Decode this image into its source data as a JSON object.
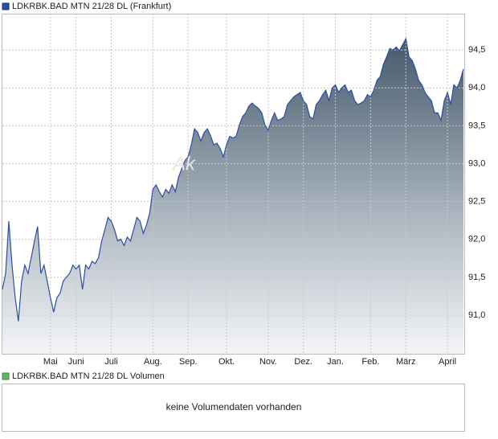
{
  "chart_data": {
    "type": "area",
    "series": [
      {
        "name": "LDKRBK.BAD MTN 21/28 DL (Frankfurt)",
        "color": "#2a4fa0",
        "values": [
          91.34,
          91.55,
          92.24,
          91.66,
          91.23,
          90.92,
          91.45,
          91.66,
          91.55,
          91.76,
          91.98,
          92.17,
          91.55,
          91.66,
          91.45,
          91.23,
          91.04,
          91.23,
          91.29,
          91.45,
          91.5,
          91.55,
          91.66,
          91.61,
          91.66,
          91.34,
          91.66,
          91.61,
          91.71,
          91.68,
          91.76,
          91.98,
          92.13,
          92.29,
          92.24,
          92.13,
          91.98,
          92.0,
          91.92,
          92.03,
          91.98,
          92.13,
          92.29,
          92.24,
          92.08,
          92.19,
          92.35,
          92.66,
          92.72,
          92.63,
          92.56,
          92.66,
          92.61,
          92.72,
          92.63,
          92.82,
          92.93,
          93.04,
          93.09,
          93.25,
          93.46,
          93.41,
          93.3,
          93.41,
          93.46,
          93.37,
          93.25,
          93.27,
          93.2,
          93.09,
          93.25,
          93.36,
          93.34,
          93.36,
          93.51,
          93.62,
          93.67,
          93.76,
          93.8,
          93.76,
          93.73,
          93.67,
          93.51,
          93.44,
          93.57,
          93.67,
          93.57,
          93.59,
          93.62,
          93.78,
          93.83,
          93.88,
          93.91,
          93.94,
          93.83,
          93.78,
          93.62,
          93.59,
          93.78,
          93.83,
          93.91,
          93.97,
          93.83,
          94.0,
          94.04,
          93.94,
          94.0,
          94.04,
          93.94,
          93.97,
          93.83,
          93.78,
          93.8,
          93.83,
          93.91,
          93.88,
          93.97,
          94.1,
          94.15,
          94.31,
          94.41,
          94.52,
          94.5,
          94.54,
          94.49,
          94.57,
          94.65,
          94.41,
          94.36,
          94.25,
          94.1,
          94.04,
          93.94,
          93.88,
          93.83,
          93.67,
          93.67,
          93.57,
          93.83,
          93.94,
          93.78,
          94.04,
          94.0,
          94.1,
          94.25
        ]
      }
    ],
    "xlim": [
      0,
      144
    ],
    "xticks": [
      {
        "value": 15,
        "label": "Mai"
      },
      {
        "value": 23,
        "label": "Juni"
      },
      {
        "value": 34,
        "label": "Juli"
      },
      {
        "value": 47,
        "label": "Aug."
      },
      {
        "value": 58,
        "label": "Sep."
      },
      {
        "value": 70,
        "label": "Okt."
      },
      {
        "value": 83,
        "label": "Nov."
      },
      {
        "value": 94,
        "label": "Dez."
      },
      {
        "value": 104,
        "label": "Jan."
      },
      {
        "value": 115,
        "label": "Feb."
      },
      {
        "value": 126,
        "label": "März"
      },
      {
        "value": 139,
        "label": "April"
      }
    ],
    "ylim": [
      90.49,
      94.98
    ],
    "yticks": [
      {
        "value": 91.0,
        "label": "91,0"
      },
      {
        "value": 91.5,
        "label": "91,5"
      },
      {
        "value": 92.0,
        "label": "92,0"
      },
      {
        "value": 92.5,
        "label": "92,5"
      },
      {
        "value": 93.0,
        "label": "93,0"
      },
      {
        "value": 93.5,
        "label": "93,5"
      },
      {
        "value": 94.0,
        "label": "94,0"
      },
      {
        "value": 94.5,
        "label": "94,5"
      }
    ],
    "grid": true,
    "watermark": "Ak"
  },
  "volume_panel": {
    "legend": "LDKRBK.BAD MTN 21/28 DL Volumen",
    "color": "#5cb85c",
    "message": "keine Volumendaten vorhanden"
  }
}
